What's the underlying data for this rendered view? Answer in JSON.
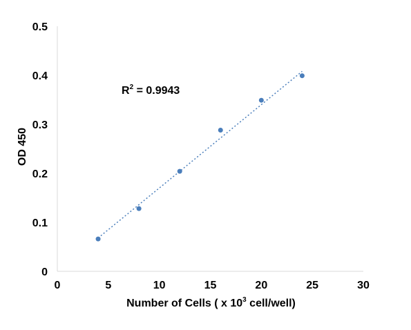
{
  "chart_data": {
    "type": "scatter",
    "title": "",
    "xlabel": "Number of Cells  ( x 10",
    "xlabel_sup": "3",
    "xlabel_tail": " cell/well)",
    "ylabel": "OD 450",
    "xlim": [
      0,
      30
    ],
    "ylim": [
      0,
      0.5
    ],
    "x_ticks": [
      0,
      5,
      10,
      15,
      20,
      25,
      30
    ],
    "y_ticks": [
      0,
      0.1,
      0.2,
      0.3,
      0.4,
      0.5
    ],
    "x_tick_labels": [
      "0",
      "5",
      "10",
      "15",
      "20",
      "25",
      "30"
    ],
    "y_tick_labels": [
      "0",
      "0.1",
      "0.2",
      "0.3",
      "0.4",
      "0.5"
    ],
    "grid": false,
    "legend": "none",
    "series": [
      {
        "x": [
          4,
          8,
          12,
          16,
          20,
          24
        ],
        "y": [
          0.066,
          0.128,
          0.204,
          0.288,
          0.349,
          0.399
        ]
      }
    ],
    "trendline": {
      "type": "linear",
      "x_range": [
        4,
        24
      ],
      "y_range": [
        0.068,
        0.408
      ]
    },
    "annotation": {
      "label": "R",
      "superscript": "2",
      "value_text": " = 0.9943"
    },
    "colors": {
      "marker": "#4a7ebb",
      "trendline": "#4a7ebb",
      "axis": "#d9d9d9"
    }
  }
}
